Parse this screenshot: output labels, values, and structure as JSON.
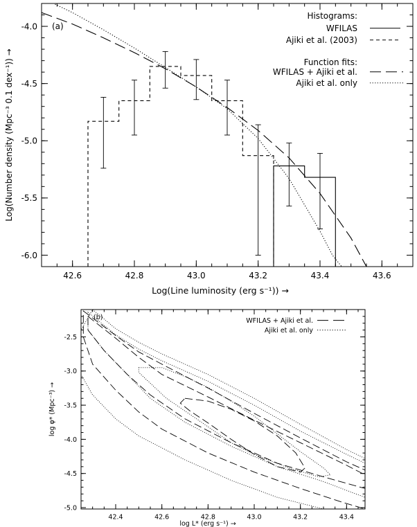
{
  "chart_data": [
    {
      "type": "line",
      "panel_label": "(a)",
      "xlabel": "Log(Line luminosity (erg s⁻¹))  →",
      "ylabel": "Log(Number density (Mpc⁻³ 0.1 dex⁻¹))  →",
      "xlim": [
        42.5,
        43.7
      ],
      "ylim": [
        -6.1,
        -3.8
      ],
      "xticks": [
        "42.6",
        "42.8",
        "43.0",
        "43.2",
        "43.4",
        "43.6"
      ],
      "yticks": [
        "-6.0",
        "-5.5",
        "-5.0",
        "-4.5",
        "-4.0"
      ],
      "legend": {
        "placement": "top-right",
        "histogram_header": "Histograms:",
        "fit_header": "Function fits:",
        "entries": [
          "WFILAS",
          "Ajiki et al. (2003)",
          "WFILAS + Ajiki et al.",
          "Ajiki et al. only"
        ]
      },
      "histograms": [
        {
          "name": "WFILAS",
          "style": "solid",
          "edges": [
            43.25,
            43.35,
            43.45
          ],
          "values": [
            -5.22,
            -5.32
          ],
          "floor": -6.1
        },
        {
          "name": "Ajiki et al. (2003)",
          "style": "short-dash",
          "edges": [
            42.65,
            42.75,
            42.85,
            42.95,
            43.05,
            43.15,
            43.25
          ],
          "values": [
            -4.83,
            -4.65,
            -4.35,
            -4.43,
            -4.65,
            -5.13
          ],
          "floor": -6.1
        }
      ],
      "error_bars": [
        {
          "x": 42.7,
          "y": -4.83,
          "low": -5.24,
          "high": -4.62
        },
        {
          "x": 42.8,
          "y": -4.65,
          "low": -4.95,
          "high": -4.47
        },
        {
          "x": 42.9,
          "y": -4.35,
          "low": -4.54,
          "high": -4.22
        },
        {
          "x": 43.0,
          "y": -4.43,
          "low": -4.64,
          "high": -4.29
        },
        {
          "x": 43.1,
          "y": -4.65,
          "low": -4.95,
          "high": -4.47
        },
        {
          "x": 43.2,
          "y": -5.13,
          "low": -6.0,
          "high": -4.86
        },
        {
          "x": 43.3,
          "y": -5.22,
          "low": -5.57,
          "high": -5.02
        },
        {
          "x": 43.4,
          "y": -5.32,
          "low": -5.77,
          "high": -5.11
        }
      ],
      "series": [
        {
          "name": "WFILAS + Ajiki et al.",
          "style": "long-dash",
          "x": [
            42.5,
            42.6,
            42.7,
            42.8,
            42.9,
            43.0,
            43.1,
            43.2,
            43.3,
            43.4,
            43.5,
            43.55
          ],
          "y": [
            -3.88,
            -3.98,
            -4.1,
            -4.23,
            -4.37,
            -4.53,
            -4.71,
            -4.91,
            -5.15,
            -5.46,
            -5.85,
            -6.1
          ]
        },
        {
          "name": "Ajiki et al. only",
          "style": "dotted",
          "x": [
            42.5,
            42.6,
            42.7,
            42.8,
            42.9,
            43.0,
            43.1,
            43.2,
            43.3,
            43.4,
            43.44,
            43.47
          ],
          "y": [
            -3.75,
            -3.88,
            -4.03,
            -4.19,
            -4.36,
            -4.53,
            -4.72,
            -4.98,
            -5.33,
            -5.79,
            -6.0,
            -6.1
          ]
        }
      ]
    },
    {
      "type": "line",
      "panel_label": "(b)",
      "xlabel": "log L* (erg s⁻¹)  →",
      "ylabel": "log φ* (Mpc⁻³)  →",
      "xlim": [
        42.25,
        43.48
      ],
      "ylim": [
        -5.02,
        -2.1
      ],
      "xticks": [
        "42.4",
        "42.6",
        "42.8",
        "43.0",
        "43.2",
        "43.4"
      ],
      "yticks": [
        "-5.0",
        "-4.5",
        "-4.0",
        "-3.5",
        "-3.0",
        "-2.5"
      ],
      "legend": {
        "placement": "top-right",
        "entries": [
          "WFILAS + Ajiki et al.",
          "Ajiki et al. only"
        ]
      },
      "contours": [
        {
          "name": "WFILAS + Ajiki et al.",
          "style": "long-dash",
          "level": 1,
          "points": [
            [
              42.7,
              -3.4
            ],
            [
              42.8,
              -3.44
            ],
            [
              42.9,
              -3.56
            ],
            [
              43.0,
              -3.73
            ],
            [
              43.1,
              -3.95
            ],
            [
              43.18,
              -4.2
            ],
            [
              43.22,
              -4.42
            ],
            [
              43.2,
              -4.48
            ],
            [
              43.1,
              -4.4
            ],
            [
              43.0,
              -4.22
            ],
            [
              42.9,
              -4.0
            ],
            [
              42.8,
              -3.76
            ],
            [
              42.72,
              -3.58
            ],
            [
              42.68,
              -3.47
            ]
          ]
        },
        {
          "name": "WFILAS + Ajiki et al.",
          "style": "long-dash",
          "level": 2,
          "points": [
            [
              42.28,
              -2.2
            ],
            [
              42.4,
              -2.52
            ],
            [
              42.5,
              -2.8
            ],
            [
              42.6,
              -3.05
            ],
            [
              42.8,
              -3.38
            ],
            [
              43.0,
              -3.72
            ],
            [
              43.2,
              -4.05
            ],
            [
              43.4,
              -4.38
            ],
            [
              43.48,
              -4.52
            ],
            [
              43.48,
              -4.72
            ],
            [
              43.3,
              -4.55
            ],
            [
              43.1,
              -4.35
            ],
            [
              42.9,
              -4.05
            ],
            [
              42.7,
              -3.7
            ],
            [
              42.55,
              -3.35
            ],
            [
              42.45,
              -3.05
            ],
            [
              42.35,
              -2.7
            ],
            [
              42.28,
              -2.4
            ]
          ]
        },
        {
          "name": "WFILAS + Ajiki et al.",
          "style": "long-dash",
          "level": 3,
          "points": [
            [
              42.26,
              -2.12
            ],
            [
              42.4,
              -2.48
            ],
            [
              42.5,
              -2.72
            ],
            [
              42.6,
              -2.9
            ],
            [
              42.8,
              -3.25
            ],
            [
              43.0,
              -3.62
            ],
            [
              43.2,
              -3.98
            ],
            [
              43.4,
              -4.33
            ],
            [
              43.48,
              -4.45
            ],
            [
              43.48,
              -5.02
            ],
            [
              43.38,
              -4.92
            ],
            [
              43.2,
              -4.72
            ],
            [
              43.0,
              -4.48
            ],
            [
              42.8,
              -4.2
            ],
            [
              42.6,
              -3.85
            ],
            [
              42.5,
              -3.6
            ],
            [
              42.4,
              -3.28
            ],
            [
              42.3,
              -2.9
            ],
            [
              42.26,
              -2.5
            ]
          ]
        },
        {
          "name": "Ajiki et al. only",
          "style": "dotted",
          "level": 1,
          "points": [
            [
              42.5,
              -2.95
            ],
            [
              42.6,
              -2.95
            ],
            [
              42.7,
              -3.08
            ],
            [
              42.8,
              -3.24
            ],
            [
              42.9,
              -3.44
            ],
            [
              43.0,
              -3.66
            ],
            [
              43.1,
              -3.92
            ],
            [
              43.2,
              -4.18
            ],
            [
              43.3,
              -4.42
            ],
            [
              43.33,
              -4.52
            ],
            [
              43.28,
              -4.55
            ],
            [
              43.15,
              -4.42
            ],
            [
              43.0,
              -4.22
            ],
            [
              42.9,
              -4.05
            ],
            [
              42.75,
              -3.7
            ],
            [
              42.62,
              -3.4
            ],
            [
              42.55,
              -3.18
            ],
            [
              42.5,
              -3.02
            ]
          ]
        },
        {
          "name": "Ajiki et al. only",
          "style": "dotted",
          "level": 2,
          "points": [
            [
              42.28,
              -2.14
            ],
            [
              42.4,
              -2.47
            ],
            [
              42.5,
              -2.68
            ],
            [
              42.6,
              -2.85
            ],
            [
              42.8,
              -3.15
            ],
            [
              43.0,
              -3.5
            ],
            [
              43.2,
              -3.88
            ],
            [
              43.4,
              -4.22
            ],
            [
              43.48,
              -4.35
            ],
            [
              43.48,
              -4.85
            ],
            [
              43.3,
              -4.62
            ],
            [
              43.1,
              -4.4
            ],
            [
              42.9,
              -4.1
            ],
            [
              42.7,
              -3.75
            ],
            [
              42.55,
              -3.4
            ],
            [
              42.45,
              -3.05
            ],
            [
              42.35,
              -2.7
            ],
            [
              42.28,
              -2.4
            ]
          ]
        },
        {
          "name": "Ajiki et al. only",
          "style": "dotted",
          "level": 3,
          "points": [
            [
              42.3,
              -2.1
            ],
            [
              42.4,
              -2.38
            ],
            [
              42.5,
              -2.58
            ],
            [
              42.6,
              -2.75
            ],
            [
              42.8,
              -3.05
            ],
            [
              43.0,
              -3.4
            ],
            [
              43.2,
              -3.78
            ],
            [
              43.4,
              -4.15
            ],
            [
              43.48,
              -4.28
            ],
            [
              43.48,
              -5.02
            ],
            [
              43.3,
              -5.02
            ],
            [
              43.1,
              -4.85
            ],
            [
              42.9,
              -4.6
            ],
            [
              42.7,
              -4.3
            ],
            [
              42.5,
              -3.95
            ],
            [
              42.4,
              -3.7
            ],
            [
              42.3,
              -3.35
            ],
            [
              42.25,
              -3.05
            ],
            [
              42.25,
              -2.4
            ]
          ]
        }
      ]
    }
  ]
}
